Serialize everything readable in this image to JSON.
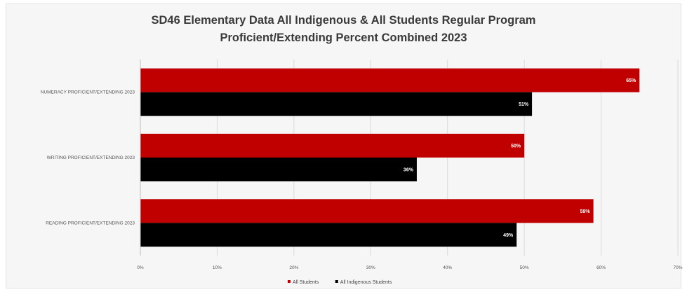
{
  "chart_data": {
    "type": "bar",
    "orientation": "horizontal",
    "title": "SD46 Elementary Data All Indigenous & All Students Regular Program",
    "subtitle": "Proficient/Extending Percent Combined 2023",
    "categories": [
      "NUMERACY PROFICIENT/EXTENDING 2023",
      "WRITING PROFICIENT/EXTENDING 2023",
      "READING PROFICIENT/EXTENDING 2023"
    ],
    "series": [
      {
        "name": "All Students",
        "color": "#c00000",
        "values": [
          65,
          50,
          59
        ],
        "labels": [
          "65%",
          "50%",
          "59%"
        ]
      },
      {
        "name": "All Indigenous Students",
        "color": "#000000",
        "values": [
          51,
          36,
          49
        ],
        "labels": [
          "51%",
          "36%",
          "49%"
        ]
      }
    ],
    "xlim": [
      0,
      70
    ],
    "xticks": [
      0,
      10,
      20,
      30,
      40,
      50,
      60,
      70
    ],
    "xtick_labels": [
      "0%",
      "10%",
      "20%",
      "30%",
      "40%",
      "50%",
      "60%",
      "70%"
    ],
    "grid": true,
    "legend_position": "bottom"
  }
}
